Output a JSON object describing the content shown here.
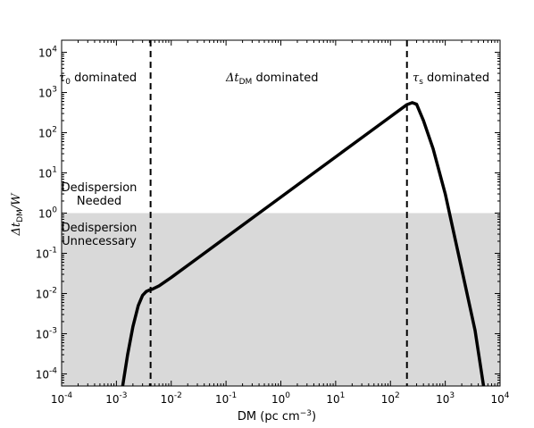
{
  "chart_data": {
    "type": "line",
    "xlabel": "DM (pc cm",
    "xlabel_exp": "−3",
    "xlabel_tail": ")",
    "ylabel_num": "Δt",
    "ylabel_sub": "DM",
    "ylabel_tail": "/W",
    "x_scale": "log",
    "y_scale": "log",
    "xlim": [
      0.0001,
      10000
    ],
    "ylim": [
      5e-05,
      20000
    ],
    "x_ticks": [
      {
        "base": "10",
        "exp": "-4"
      },
      {
        "base": "10",
        "exp": "-3"
      },
      {
        "base": "10",
        "exp": "-2"
      },
      {
        "base": "10",
        "exp": "-1"
      },
      {
        "base": "10",
        "exp": "0"
      },
      {
        "base": "10",
        "exp": "1"
      },
      {
        "base": "10",
        "exp": "2"
      },
      {
        "base": "10",
        "exp": "3"
      },
      {
        "base": "10",
        "exp": "4"
      }
    ],
    "y_ticks": [
      {
        "base": "10",
        "exp": "-4"
      },
      {
        "base": "10",
        "exp": "-3"
      },
      {
        "base": "10",
        "exp": "-2"
      },
      {
        "base": "10",
        "exp": "-1"
      },
      {
        "base": "10",
        "exp": "0"
      },
      {
        "base": "10",
        "exp": "1"
      },
      {
        "base": "10",
        "exp": "2"
      },
      {
        "base": "10",
        "exp": "3"
      },
      {
        "base": "10",
        "exp": "4"
      }
    ],
    "shaded_region": {
      "y_from": 5e-05,
      "y_to": 1.0,
      "color": "#d9d9d9"
    },
    "vlines": [
      {
        "x": 0.0042,
        "style": "dashed"
      },
      {
        "x": 200,
        "style": "dashed"
      }
    ],
    "series": [
      {
        "color": "#000000",
        "x": [
          0.0013,
          0.0016,
          0.002,
          0.0025,
          0.003,
          0.0035,
          0.004,
          0.0045,
          0.006,
          0.01,
          0.03,
          0.1,
          0.3,
          1,
          3,
          10,
          30,
          100,
          200,
          250,
          300,
          400,
          600,
          1000,
          2000,
          3500,
          5000
        ],
        "y": [
          5e-05,
          0.0003,
          0.0015,
          0.005,
          0.009,
          0.0112,
          0.0122,
          0.0128,
          0.0155,
          0.025,
          0.075,
          0.25,
          0.75,
          2.5,
          7.5,
          25,
          75,
          250,
          500,
          560,
          510,
          200,
          40,
          3.0,
          0.04,
          0.0012,
          5e-05
        ]
      }
    ],
    "annotations": {
      "tau0": {
        "sym": "τ",
        "sub": "0",
        "text": " dominated"
      },
      "dt": {
        "sym": "Δt",
        "sub": "DM",
        "text": " dominated"
      },
      "taus": {
        "sym": "τ",
        "sub": "s",
        "text": " dominated"
      },
      "needed": [
        "Dedispersion",
        "Needed"
      ],
      "unnecessary": [
        "Dedispersion",
        "Unnecessary"
      ]
    }
  }
}
